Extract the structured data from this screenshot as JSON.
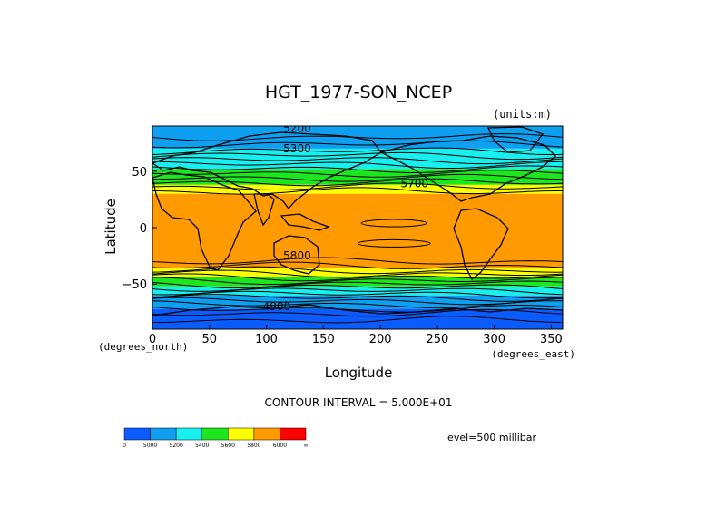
{
  "chart_data": {
    "type": "heatmap",
    "title": "HGT_1977-SON_NCEP",
    "units": "(units:m)",
    "xlabel": "Longitude",
    "ylabel": "Latitude",
    "x_units": "(degrees_east)",
    "y_units": "(degrees_north)",
    "xlim": [
      0,
      360
    ],
    "ylim": [
      -90,
      90
    ],
    "xticks": [
      0,
      50,
      100,
      150,
      200,
      250,
      300,
      350
    ],
    "yticks": [
      50,
      0,
      -50
    ],
    "contour_interval": "CONTOUR INTERVAL = 5.000E+01",
    "level": "level=500 millibar",
    "colorbar": {
      "labels": [
        "0",
        "5000",
        "5200",
        "5400",
        "5600",
        "5800",
        "6000",
        "∞"
      ],
      "colors": [
        "#0a5cff",
        "#0f9ff0",
        "#18f0f0",
        "#1ee61e",
        "#ffff00",
        "#ff9a00",
        "#ff0000"
      ]
    },
    "zonal_bands": [
      {
        "lat": [
          -90,
          -72
        ],
        "range": "0-5000",
        "color": "#0a5cff"
      },
      {
        "lat": [
          -72,
          -60
        ],
        "range": "5000-5200",
        "color": "#0f9ff0"
      },
      {
        "lat": [
          -60,
          -52
        ],
        "range": "5200-5400",
        "color": "#18f0f0"
      },
      {
        "lat": [
          -52,
          -44
        ],
        "range": "5400-5600",
        "color": "#1ee61e"
      },
      {
        "lat": [
          -44,
          -36
        ],
        "range": "5600-5800",
        "color": "#ffff00"
      },
      {
        "lat": [
          -36,
          30
        ],
        "range": "5800-6000",
        "color": "#ff9a00"
      },
      {
        "lat": [
          30,
          38
        ],
        "range": "5600-5800",
        "color": "#ffff00"
      },
      {
        "lat": [
          38,
          52
        ],
        "range": "5400-5600",
        "color": "#1ee61e"
      },
      {
        "lat": [
          52,
          70
        ],
        "range": "5200-5400",
        "color": "#18f0f0"
      },
      {
        "lat": [
          70,
          90
        ],
        "range": "5000-5200",
        "color": "#0f9ff0"
      }
    ],
    "contour_labels": [
      {
        "text": "5200",
        "lon": 127,
        "lat": 88
      },
      {
        "text": "5300",
        "lon": 127,
        "lat": 70
      },
      {
        "text": "5700",
        "lon": 230,
        "lat": 39
      },
      {
        "text": "5800",
        "lon": 127,
        "lat": -25
      },
      {
        "text": "4900",
        "lon": 109,
        "lat": -70
      }
    ],
    "grid": false
  }
}
